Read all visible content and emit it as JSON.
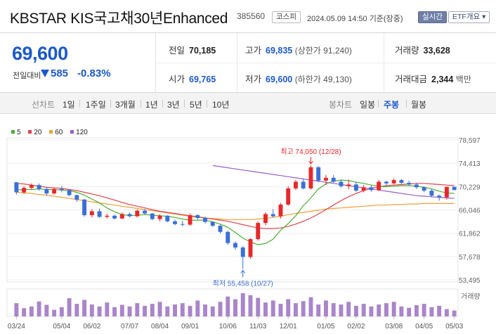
{
  "header": {
    "title": "KBSTAR KIS국고채30년Enhanced",
    "code": "385560",
    "market_badge": "코스피",
    "datetime": "2024.05.09 14:50 기준(장중)",
    "realtime_badge": "실시간",
    "etf_button": "ETF개요 ▾"
  },
  "quote": {
    "price": "69,600",
    "change_label": "전일대비",
    "change_value": "585",
    "change_direction": "down",
    "change_pct": "-0.83%",
    "prev_close_label": "전일",
    "prev_close": "70,185",
    "high_label": "고가",
    "high": "69,835",
    "upper_limit": "(상한가 91,240)",
    "volume_label": "거래량",
    "volume": "33,628",
    "open_label": "시가",
    "open": "69,765",
    "low_label": "저가",
    "low": "69,600",
    "lower_limit": "(하한가 49,130)",
    "amount_label": "거래대금",
    "amount": "2,344",
    "amount_unit": "백만"
  },
  "period_bar": {
    "line_label": "선차트",
    "line_periods": [
      "1일",
      "1주일",
      "3개월",
      "1년",
      "3년",
      "5년",
      "10년"
    ],
    "candle_label": "봉차트",
    "candle_periods": [
      "일봉",
      "주봉",
      "월봉"
    ],
    "active_candle": "주봉"
  },
  "colors": {
    "up": "#e8272a",
    "down": "#3a6fd8",
    "ma5": "#4cae32",
    "ma20": "#e0424a",
    "ma60": "#eda038",
    "ma120": "#9c5cc9"
  },
  "legend": [
    {
      "label": "5",
      "color": "#4cae32"
    },
    {
      "label": "20",
      "color": "#e0424a"
    },
    {
      "label": "60",
      "color": "#eda038"
    },
    {
      "label": "120",
      "color": "#9c5cc9"
    }
  ],
  "chart_data": {
    "type": "candlestick",
    "period": "weekly",
    "y_ticks": [
      78597,
      74413,
      70229,
      66046,
      61862,
      57678,
      53495
    ],
    "y_tick_labels": [
      "78,597",
      "74,413",
      "70,229",
      "66,046",
      "61,862",
      "57,678",
      "53,495"
    ],
    "ylim": [
      53495,
      78597
    ],
    "x_labels": [
      "03/24",
      "05/04",
      "06/02",
      "07/07",
      "08/04",
      "09/01",
      "10/06",
      "11/03",
      "12/01",
      "01/05",
      "02/02",
      "03/08",
      "04/05",
      "05/03"
    ],
    "x_label_index": [
      0,
      6,
      10,
      15,
      19,
      23,
      28,
      32,
      36,
      41,
      45,
      50,
      54,
      58
    ],
    "candles": [
      [
        71000,
        71000,
        68800,
        69200
      ],
      [
        69200,
        70300,
        68900,
        70000
      ],
      [
        70000,
        70800,
        69700,
        70500
      ],
      [
        70500,
        70800,
        69500,
        69800
      ],
      [
        69800,
        70100,
        68600,
        69000
      ],
      [
        69000,
        70000,
        68800,
        69800
      ],
      [
        69800,
        70300,
        69200,
        69600
      ],
      [
        69600,
        69700,
        68500,
        68700
      ],
      [
        68700,
        68800,
        67500,
        67900
      ],
      [
        67900,
        68000,
        64800,
        65100
      ],
      [
        65100,
        66200,
        64700,
        65800
      ],
      [
        65800,
        66300,
        64600,
        64800
      ],
      [
        64800,
        65400,
        64500,
        65000
      ],
      [
        65000,
        65200,
        64300,
        64500
      ],
      [
        64500,
        65600,
        64400,
        65300
      ],
      [
        65300,
        65600,
        64700,
        64900
      ],
      [
        64900,
        66100,
        64700,
        65900
      ],
      [
        65900,
        66200,
        65100,
        65400
      ],
      [
        65400,
        65500,
        64200,
        64400
      ],
      [
        64400,
        65300,
        64000,
        65000
      ],
      [
        65000,
        65100,
        63800,
        64000
      ],
      [
        64000,
        64300,
        63300,
        63500
      ],
      [
        63500,
        64100,
        63100,
        63400
      ],
      [
        63400,
        65400,
        63200,
        65100
      ],
      [
        65100,
        65300,
        64300,
        64600
      ],
      [
        64600,
        64800,
        63600,
        63900
      ],
      [
        63900,
        64000,
        63000,
        63200
      ],
      [
        63200,
        63400,
        61800,
        62100
      ],
      [
        62100,
        62300,
        59800,
        60100
      ],
      [
        60100,
        60400,
        58900,
        59300
      ],
      [
        59300,
        59600,
        55458,
        57600
      ],
      [
        57600,
        61000,
        57300,
        60800
      ],
      [
        60800,
        64000,
        60500,
        63700
      ],
      [
        63700,
        65600,
        63300,
        65300
      ],
      [
        65300,
        66200,
        64700,
        64900
      ],
      [
        64900,
        67300,
        64500,
        67000
      ],
      [
        67000,
        70300,
        66800,
        69900
      ],
      [
        69900,
        71400,
        69600,
        71100
      ],
      [
        71100,
        71500,
        69700,
        69900
      ],
      [
        69900,
        74050,
        69700,
        73700
      ],
      [
        73700,
        73900,
        71000,
        71300
      ],
      [
        71300,
        72300,
        70500,
        71800
      ],
      [
        71800,
        72300,
        70900,
        71100
      ],
      [
        71100,
        71500,
        70000,
        70300
      ],
      [
        70300,
        71500,
        69700,
        70600
      ],
      [
        70600,
        71100,
        69300,
        69500
      ],
      [
        69500,
        70500,
        69200,
        70100
      ],
      [
        70100,
        70400,
        69300,
        69600
      ],
      [
        69600,
        71400,
        69400,
        71100
      ],
      [
        71100,
        71300,
        70400,
        70800
      ],
      [
        70800,
        71700,
        70600,
        71400
      ],
      [
        71400,
        71600,
        70700,
        70900
      ],
      [
        70900,
        71300,
        70400,
        70600
      ],
      [
        70600,
        70900,
        69800,
        70100
      ],
      [
        70100,
        70300,
        69200,
        69500
      ],
      [
        69500,
        69800,
        68300,
        68600
      ],
      [
        68600,
        68800,
        67700,
        68300
      ],
      [
        68300,
        70185,
        67900,
        70185
      ],
      [
        70185,
        70185,
        69600,
        69600
      ]
    ],
    "ma5": [
      69600,
      69700,
      69700,
      69800,
      69700,
      69700,
      69600,
      69500,
      69200,
      68700,
      68000,
      67300,
      66400,
      65700,
      65200,
      65000,
      65100,
      65200,
      65100,
      65000,
      64900,
      64700,
      64400,
      64200,
      64200,
      64200,
      63900,
      63500,
      62900,
      62000,
      61000,
      60300,
      59800,
      60000,
      60800,
      62400,
      63600,
      65000,
      66800,
      68200,
      69800,
      70700,
      71200,
      71400,
      71300,
      71000,
      70800,
      70500,
      70300,
      70200,
      70300,
      70400,
      70400,
      70300,
      70100,
      69800,
      69400,
      69100,
      69000
    ],
    "ma20": [
      70800,
      70700,
      70500,
      70300,
      70100,
      70000,
      69900,
      69700,
      69500,
      69200,
      68900,
      68600,
      68200,
      67800,
      67400,
      67000,
      66700,
      66400,
      66100,
      65800,
      65600,
      65400,
      65200,
      65000,
      64800,
      64600,
      64400,
      64200,
      64000,
      63700,
      63400,
      63100,
      62800,
      62700,
      62700,
      62800,
      63100,
      63500,
      64000,
      64600,
      65300,
      66100,
      66900,
      67700,
      68400,
      69000,
      69500,
      69900,
      70200,
      70400,
      70500,
      70600,
      70700,
      70800,
      70800,
      70700,
      70600,
      70500,
      70400
    ],
    "ma60": [
      null,
      null,
      null,
      null,
      null,
      null,
      null,
      null,
      null,
      null,
      null,
      null,
      null,
      null,
      null,
      null,
      null,
      null,
      null,
      null,
      null,
      null,
      null,
      null,
      null,
      null,
      null,
      null,
      null,
      null,
      null,
      null,
      null,
      null,
      null,
      null,
      null,
      null,
      null,
      null,
      null,
      null,
      null,
      null,
      null,
      null,
      null,
      null,
      null,
      null,
      null,
      null,
      null,
      null,
      null,
      null,
      null,
      null,
      null
    ],
    "ma60_values": [
      69200,
      69100,
      69000,
      68800,
      68700,
      68500,
      68300,
      68100,
      67900,
      67700,
      67500,
      67300,
      67100,
      66900,
      66700,
      66500,
      66300,
      66100,
      65900,
      65700,
      65500,
      65300,
      65100,
      64900,
      64700,
      64600,
      64500,
      64400,
      64300,
      64300,
      64300,
      64300,
      64400,
      64500,
      64700,
      64900,
      65200,
      65400,
      65600,
      65800,
      66000,
      66200,
      66300,
      66400,
      66500,
      66600,
      66700,
      66800,
      66900,
      66900,
      67000,
      67000,
      67100,
      67100,
      67200,
      67200,
      67200,
      67200,
      67200
    ],
    "ma120": [
      null,
      null,
      null,
      null,
      null,
      null,
      null,
      null,
      null,
      null,
      null,
      null,
      null,
      null,
      null,
      null,
      null,
      null,
      null,
      null,
      null,
      null,
      null,
      null,
      null,
      null,
      null,
      null,
      null,
      null,
      null,
      null,
      null,
      null,
      null,
      null,
      null,
      null,
      null,
      null,
      null,
      null,
      null,
      null,
      null,
      null,
      null,
      null,
      null,
      null,
      null,
      null,
      null,
      null,
      null,
      null,
      null,
      null,
      null
    ],
    "ma120_values": [
      null,
      null,
      null,
      null,
      null,
      null,
      null,
      null,
      null,
      null,
      null,
      null,
      null,
      null,
      null,
      null,
      null,
      null,
      null,
      null,
      null,
      null,
      null,
      null,
      null,
      null,
      74000,
      73800,
      73600,
      73400,
      73200,
      73000,
      72800,
      72600,
      72400,
      72200,
      72000,
      71800,
      71600,
      71400,
      71200,
      71000,
      70800,
      70600,
      70400,
      70200,
      70000,
      69800,
      69600,
      69400,
      69200,
      69000,
      68800,
      68600,
      68500,
      68400,
      68300,
      68200,
      68100
    ],
    "volume": [
      40,
      25,
      30,
      45,
      35,
      20,
      28,
      55,
      38,
      50,
      36,
      30,
      42,
      28,
      35,
      30,
      40,
      32,
      38,
      44,
      30,
      36,
      40,
      32,
      48,
      36,
      30,
      44,
      60,
      52,
      70,
      64,
      56,
      42,
      48,
      38,
      52,
      40,
      46,
      58,
      36,
      48,
      40,
      36,
      44,
      32,
      38,
      30,
      36,
      40,
      44,
      30,
      26,
      34,
      38,
      28,
      32,
      22,
      18
    ],
    "volume_label": "거래량",
    "annotations": {
      "max": {
        "text": "최고 74,050 (12/28)",
        "index": 39,
        "value": 74050
      },
      "min": {
        "text": "최저 55,458 (10/27)",
        "index": 30,
        "value": 55458
      }
    }
  }
}
